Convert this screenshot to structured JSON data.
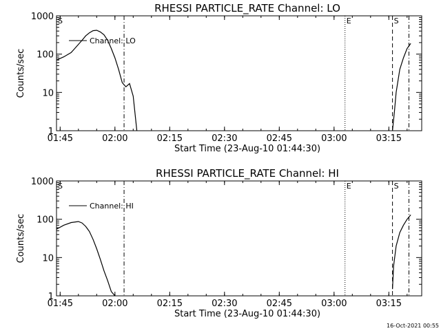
{
  "chart_data": [
    {
      "type": "line",
      "title": "RHESSI PARTICLE_RATE Channel: LO",
      "xlabel": "Start Time (23-Aug-10 01:44:30)",
      "ylabel": "Counts/sec",
      "yscale": "log",
      "ylim": [
        1,
        1000
      ],
      "xlim": [
        "01:44",
        "03:24"
      ],
      "x_ticks": [
        "01:45",
        "02:00",
        "02:15",
        "02:30",
        "02:45",
        "03:00",
        "03:15"
      ],
      "y_ticks": [
        "1",
        "10",
        "100",
        "1000"
      ],
      "legend": "Channel: LO",
      "legend_position": "top-left",
      "series": [
        {
          "name": "Channel: LO",
          "segments": [
            {
              "x": [
                "01:44",
                "01:46",
                "01:48",
                "01:49",
                "01:50",
                "01:51",
                "01:52",
                "01:53",
                "01:54",
                "01:55",
                "01:56",
                "01:57",
                "01:58",
                "01:59",
                "02:00",
                "02:01",
                "02:02",
                "02:03",
                "02:04",
                "02:05",
                "02:06"
              ],
              "y": [
                70,
                85,
                110,
                140,
                180,
                230,
                300,
                360,
                410,
                420,
                380,
                320,
                230,
                140,
                80,
                40,
                18,
                14,
                17,
                8,
                1
              ]
            },
            {
              "x": [
                "03:16",
                "03:16.5",
                "03:17",
                "03:18",
                "03:19",
                "03:20",
                "03:21"
              ],
              "y": [
                1,
                3,
                10,
                40,
                80,
                140,
                190
              ]
            }
          ]
        }
      ],
      "markers": [
        {
          "label": "S",
          "x": "01:44"
        },
        {
          "label": "",
          "x": "02:02.5",
          "style": "dashdot"
        },
        {
          "label": "E",
          "x": "03:03",
          "style": "dotted"
        },
        {
          "label": "S",
          "x": "03:16",
          "style": "dashed"
        },
        {
          "label": "",
          "x": "03:20.5",
          "style": "dashdot"
        }
      ]
    },
    {
      "type": "line",
      "title": "RHESSI PARTICLE_RATE Channel: HI",
      "xlabel": "Start Time (23-Aug-10 01:44:30)",
      "ylabel": "Counts/sec",
      "yscale": "log",
      "ylim": [
        1,
        1000
      ],
      "xlim": [
        "01:44",
        "03:24"
      ],
      "x_ticks": [
        "01:45",
        "02:00",
        "02:15",
        "02:30",
        "02:45",
        "03:00",
        "03:15"
      ],
      "y_ticks": [
        "1",
        "10",
        "100",
        "1000"
      ],
      "legend": "Channel: HI",
      "legend_position": "top-left",
      "series": [
        {
          "name": "Channel: HI",
          "segments": [
            {
              "x": [
                "01:44",
                "01:46",
                "01:48",
                "01:50",
                "01:51",
                "01:52",
                "01:53",
                "01:54",
                "01:55",
                "01:56",
                "01:57",
                "01:58",
                "01:59",
                "02:00"
              ],
              "y": [
                55,
                70,
                82,
                87,
                80,
                65,
                48,
                30,
                17,
                9,
                4.5,
                2.5,
                1.3,
                1
              ]
            },
            {
              "x": [
                "03:16",
                "03:16.3",
                "03:17",
                "03:18",
                "03:19",
                "03:20",
                "03:21"
              ],
              "y": [
                1.5,
                6,
                20,
                45,
                70,
                100,
                130
              ]
            }
          ]
        }
      ],
      "markers": [
        {
          "label": "S",
          "x": "01:44"
        },
        {
          "label": "",
          "x": "02:02.5",
          "style": "dashdot"
        },
        {
          "label": "E",
          "x": "03:03",
          "style": "dotted"
        },
        {
          "label": "S",
          "x": "03:16",
          "style": "dashed"
        },
        {
          "label": "",
          "x": "03:20.5",
          "style": "dashdot"
        }
      ]
    }
  ],
  "footer": {
    "timestamp": "16-Oct-2021 00:55"
  }
}
